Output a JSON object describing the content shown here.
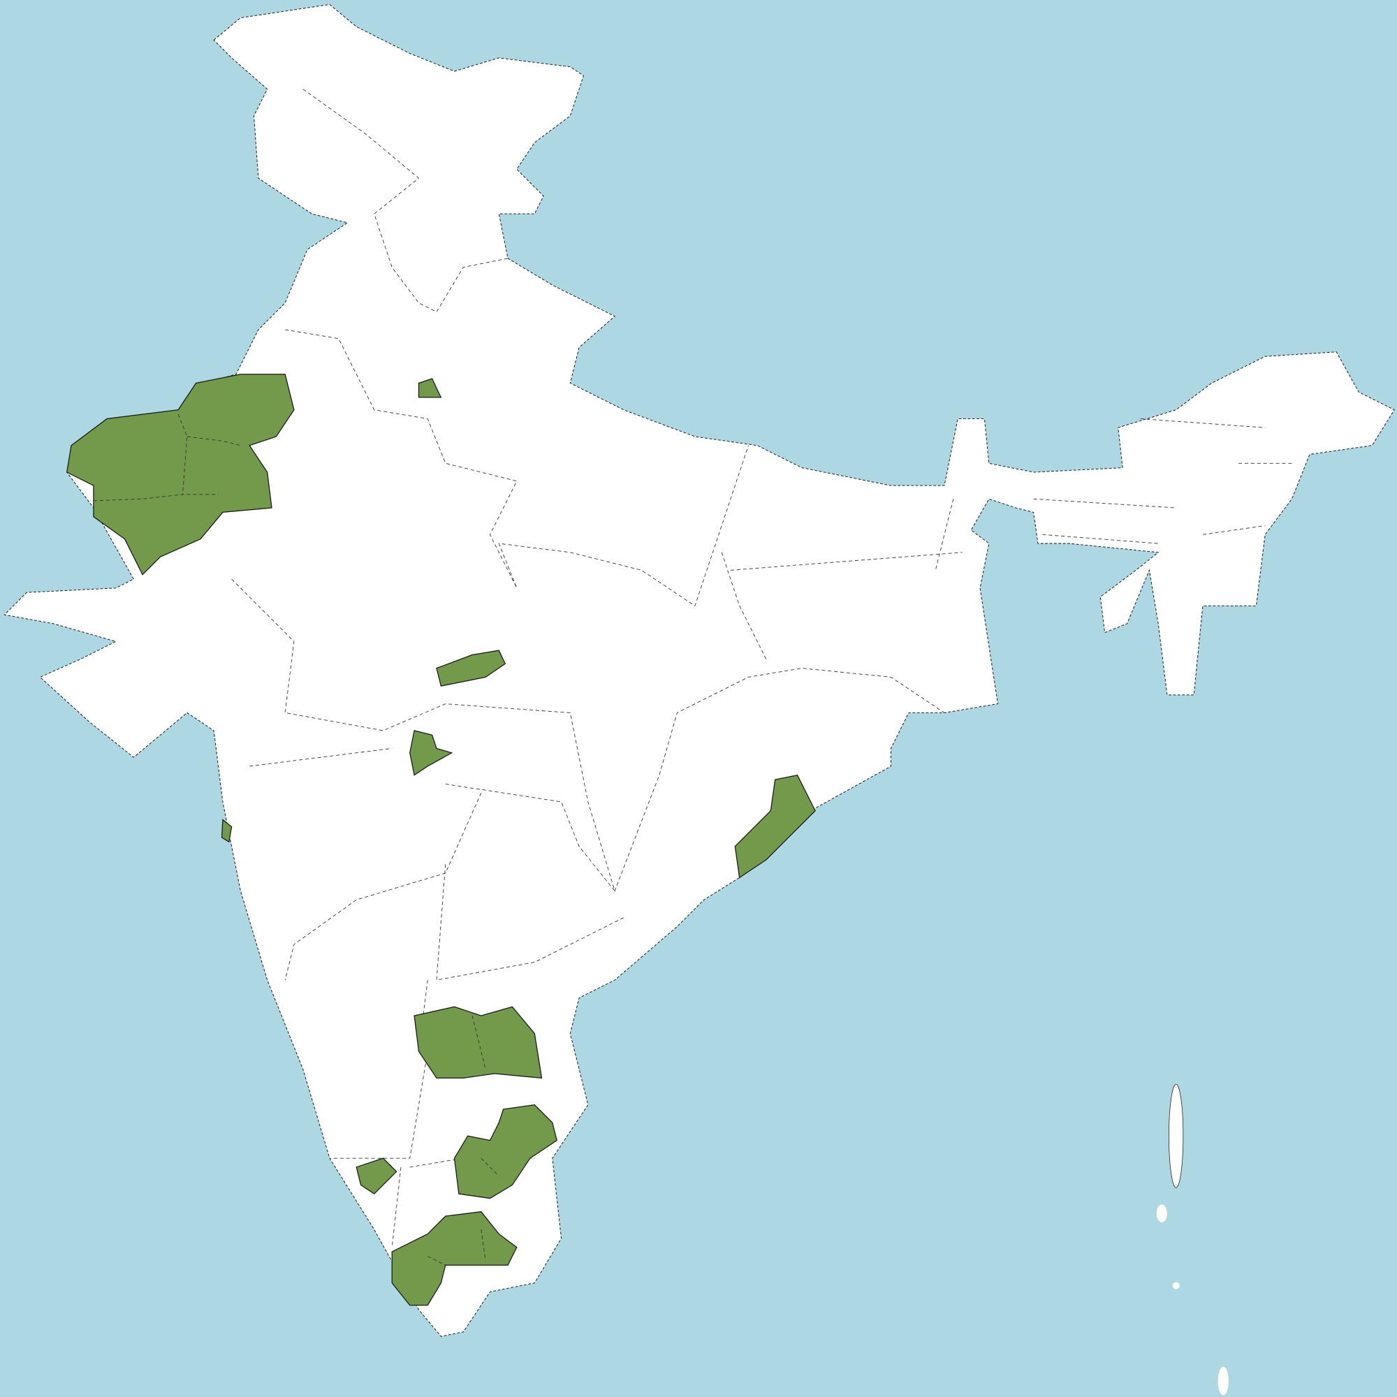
{
  "map": {
    "colors": {
      "water": "#add8e3",
      "land": "#ffffff",
      "highlighted": "#73994a",
      "border": "#222222"
    },
    "highlighted_region_count": 11
  }
}
